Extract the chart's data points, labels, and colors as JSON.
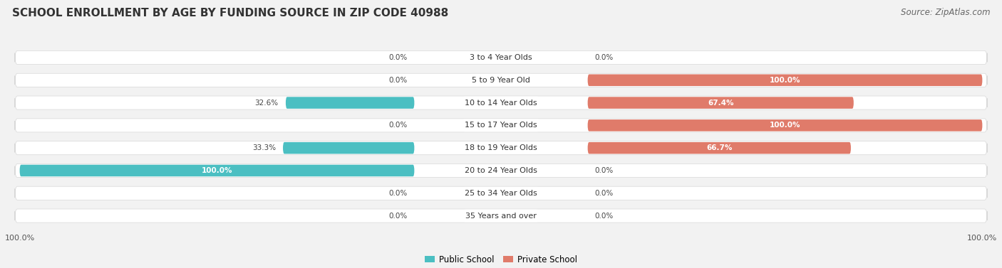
{
  "title": "SCHOOL ENROLLMENT BY AGE BY FUNDING SOURCE IN ZIP CODE 40988",
  "source": "Source: ZipAtlas.com",
  "categories": [
    "3 to 4 Year Olds",
    "5 to 9 Year Old",
    "10 to 14 Year Olds",
    "15 to 17 Year Olds",
    "18 to 19 Year Olds",
    "20 to 24 Year Olds",
    "25 to 34 Year Olds",
    "35 Years and over"
  ],
  "public_values": [
    0.0,
    0.0,
    32.6,
    0.0,
    33.3,
    100.0,
    0.0,
    0.0
  ],
  "private_values": [
    0.0,
    100.0,
    67.4,
    100.0,
    66.7,
    0.0,
    0.0,
    0.0
  ],
  "public_color": "#4bbfc2",
  "public_color_light": "#a8dfe0",
  "private_color": "#e07b6a",
  "private_color_light": "#f0b8ae",
  "public_label": "Public School",
  "private_label": "Private School",
  "background_color": "#f2f2f2",
  "bar_bg_color": "#f8f8f8",
  "row_sep_color": "#d8d8d8",
  "xlim": 100,
  "title_fontsize": 11,
  "source_fontsize": 8.5,
  "label_fontsize": 8,
  "value_fontsize": 7.5,
  "tick_fontsize": 8
}
